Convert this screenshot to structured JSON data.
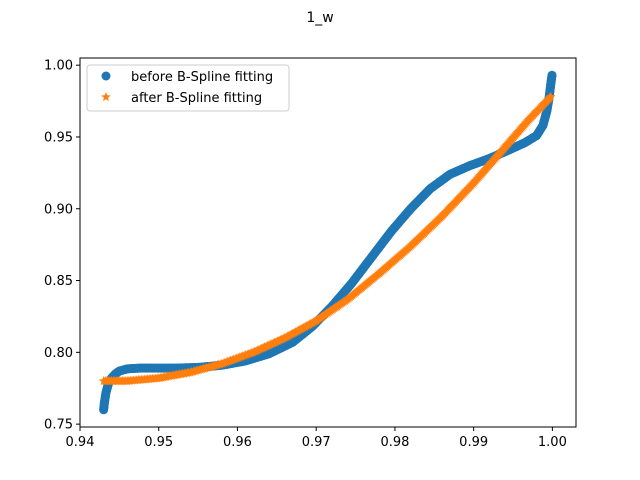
{
  "chart_data": {
    "type": "scatter",
    "title": "1_w",
    "xlabel": "",
    "ylabel": "",
    "xlim": [
      0.94,
      1.003
    ],
    "ylim": [
      0.748,
      1.005
    ],
    "x_ticks": [
      0.94,
      0.95,
      0.96,
      0.97,
      0.98,
      0.99,
      1.0
    ],
    "x_tick_labels": [
      "0.94",
      "0.95",
      "0.96",
      "0.97",
      "0.98",
      "0.99",
      "1.00"
    ],
    "y_ticks": [
      0.75,
      0.8,
      0.85,
      0.9,
      0.95,
      1.0
    ],
    "y_tick_labels": [
      "0.75",
      "0.80",
      "0.85",
      "0.90",
      "0.95",
      "1.00"
    ],
    "grid": false,
    "legend_position": "upper-left",
    "series": [
      {
        "name": "before B-Spline fitting",
        "marker": "circle",
        "color": "#1f77b4",
        "x": [
          0.943,
          0.9431,
          0.9433,
          0.9436,
          0.944,
          0.9445,
          0.945,
          0.946,
          0.9475,
          0.9495,
          0.952,
          0.955,
          0.958,
          0.961,
          0.964,
          0.967,
          0.9695,
          0.972,
          0.9745,
          0.977,
          0.9795,
          0.982,
          0.9845,
          0.987,
          0.9895,
          0.992,
          0.9945,
          0.9965,
          0.998,
          0.9988,
          0.9993,
          0.9996,
          0.9998,
          0.99995
        ],
        "y": [
          0.76,
          0.765,
          0.772,
          0.778,
          0.782,
          0.785,
          0.787,
          0.7885,
          0.789,
          0.789,
          0.789,
          0.7895,
          0.791,
          0.794,
          0.799,
          0.807,
          0.818,
          0.832,
          0.848,
          0.866,
          0.884,
          0.9,
          0.914,
          0.924,
          0.93,
          0.935,
          0.941,
          0.946,
          0.951,
          0.958,
          0.968,
          0.978,
          0.987,
          0.993
        ]
      },
      {
        "name": "after B-Spline fitting",
        "marker": "star",
        "color": "#ff7f0e",
        "x": [
          0.943,
          0.946,
          0.95,
          0.954,
          0.958,
          0.962,
          0.966,
          0.97,
          0.974,
          0.978,
          0.982,
          0.986,
          0.99,
          0.994,
          0.997,
          0.9998
        ],
        "y": [
          0.78,
          0.78,
          0.782,
          0.786,
          0.792,
          0.8,
          0.81,
          0.822,
          0.837,
          0.855,
          0.874,
          0.895,
          0.918,
          0.943,
          0.962,
          0.978
        ]
      }
    ]
  }
}
